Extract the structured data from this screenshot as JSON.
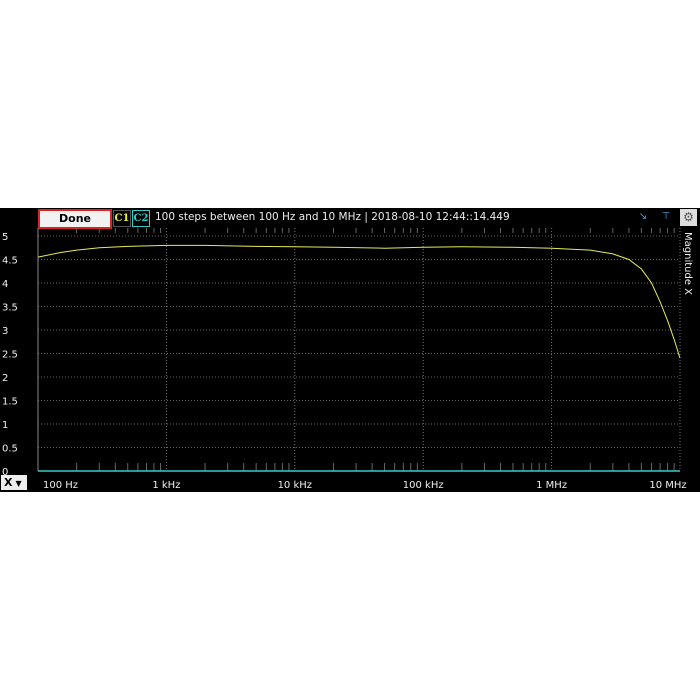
{
  "toolbar": {
    "done_label": "Done",
    "c1_label": "C1",
    "c2_label": "C2",
    "info": "100 steps  between 100 Hz and 10 MHz | 2018-08-10 12:44::14.449",
    "icons": [
      "cursor-marker-icon",
      "level-marker-icon",
      "settings-gear-icon"
    ]
  },
  "x_selector": {
    "label": "X",
    "icon": "dropdown-arrow-icon"
  },
  "colors": {
    "c1": "#e8e85a",
    "c2": "#33cccc",
    "background": "#000000",
    "done_border": "#dd2222"
  },
  "chart_data": {
    "type": "line",
    "ylabel": "Magnitude X",
    "xscale": "log",
    "xlim": [
      100,
      10000000
    ],
    "ylim": [
      0,
      5
    ],
    "grid": true,
    "ytick_labels": [
      "5",
      "4.5",
      "4",
      "3.5",
      "3",
      "2.5",
      "2",
      "1.5",
      "1",
      "0.5",
      "0"
    ],
    "yticks": [
      5,
      4.5,
      4,
      3.5,
      3,
      2.5,
      2,
      1.5,
      1,
      0.5,
      0
    ],
    "xtick_labels": [
      "100 Hz",
      "1 kHz",
      "10 kHz",
      "100 kHz",
      "1 MHz",
      "10 MHz"
    ],
    "xticks": [
      100,
      1000,
      10000,
      100000,
      1000000,
      10000000
    ],
    "series": [
      {
        "name": "C1",
        "color": "#e8e85a",
        "x": [
          100,
          150,
          200,
          300,
          500,
          1000,
          2000,
          5000,
          10000,
          20000,
          50000,
          100000,
          200000,
          500000,
          1000000,
          2000000,
          3000000,
          4000000,
          5000000,
          6000000,
          7000000,
          8000000,
          9000000,
          10000000
        ],
        "y": [
          4.55,
          4.65,
          4.7,
          4.75,
          4.78,
          4.8,
          4.8,
          4.78,
          4.77,
          4.76,
          4.74,
          4.76,
          4.77,
          4.76,
          4.74,
          4.7,
          4.62,
          4.5,
          4.3,
          4.0,
          3.6,
          3.2,
          2.8,
          2.4
        ]
      },
      {
        "name": "C2",
        "color": "#33cccc",
        "x": [
          100,
          10000000
        ],
        "y": [
          0,
          0
        ]
      }
    ]
  }
}
